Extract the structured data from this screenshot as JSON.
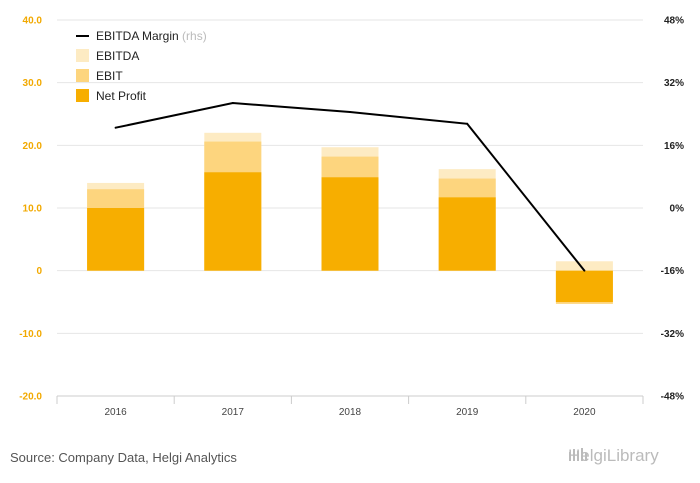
{
  "chart_data": {
    "type": "bar",
    "categories": [
      "2016",
      "2017",
      "2018",
      "2019",
      "2020"
    ],
    "series": [
      {
        "name": "Net Profit",
        "values": [
          10.0,
          15.7,
          14.9,
          11.7,
          -5.0
        ]
      },
      {
        "name": "EBIT",
        "values": [
          13.0,
          20.6,
          18.2,
          14.7,
          -5.3
        ]
      },
      {
        "name": "EBITDA",
        "values": [
          14.0,
          22.0,
          19.7,
          16.2,
          1.5
        ]
      },
      {
        "name": "EBITDA Margin",
        "note": "(rhs)",
        "type": "line",
        "axis": "right",
        "values": [
          20.5,
          26.8,
          24.5,
          21.5,
          -16.0
        ]
      }
    ],
    "y_left": {
      "ticks": [
        "40.0",
        "30.0",
        "20.0",
        "10.0",
        "0",
        "-10.0",
        "-20.0"
      ],
      "ylim": [
        -20,
        40
      ]
    },
    "y_right": {
      "ticks": [
        "48%",
        "32%",
        "16%",
        "0%",
        "-16%",
        "-32%",
        "-48%"
      ],
      "ylim": [
        -48,
        48
      ]
    },
    "legend": {
      "position": "top-left"
    },
    "grid": true,
    "colors": {
      "Net Profit": "#f7ae00",
      "EBIT": "#fdd57e",
      "EBITDA": "#fdebc3",
      "EBITDA Margin": "#000000"
    }
  },
  "source_text": "Source: Company Data, Helgi Analytics",
  "logo_text": "HelgiLibrary"
}
